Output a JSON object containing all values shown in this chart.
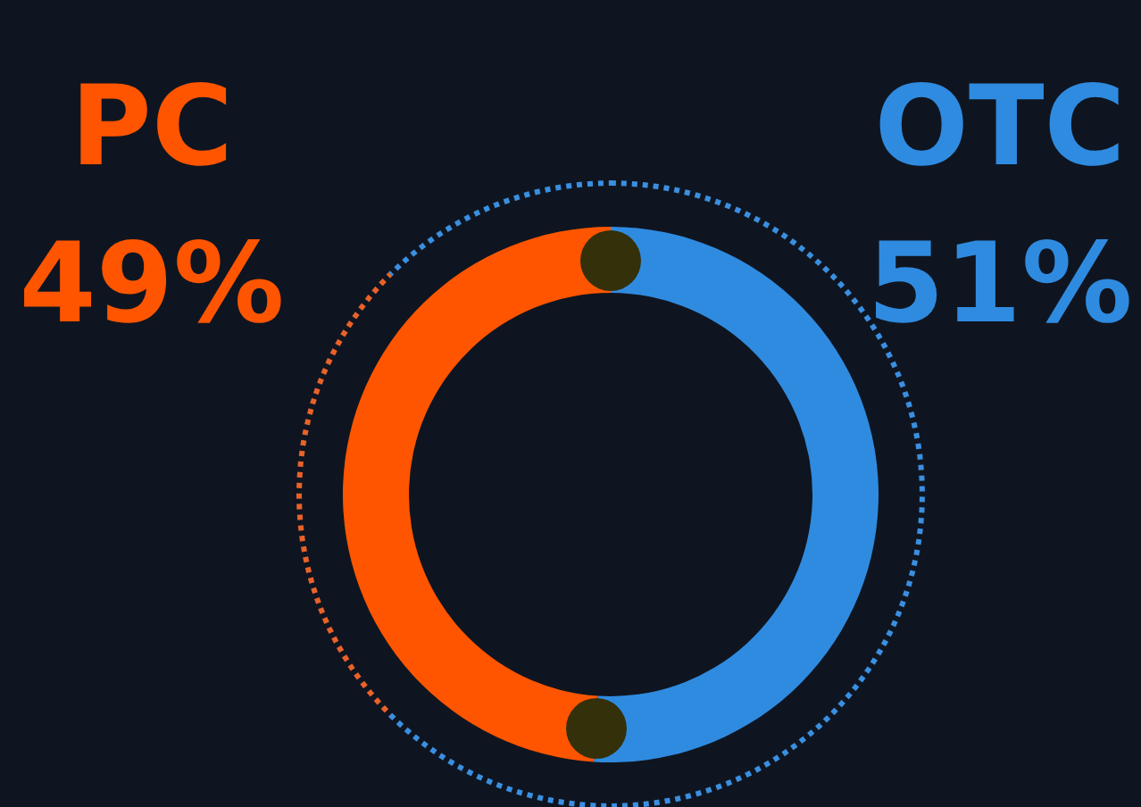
{
  "chart_data": {
    "type": "donut",
    "categories": [
      "OTC",
      "PC"
    ],
    "values": [
      51,
      49
    ],
    "colors": [
      "#2f8be0",
      "#ff5500"
    ],
    "value_labels": [
      "51%",
      "49%"
    ],
    "legend": false
  }
}
